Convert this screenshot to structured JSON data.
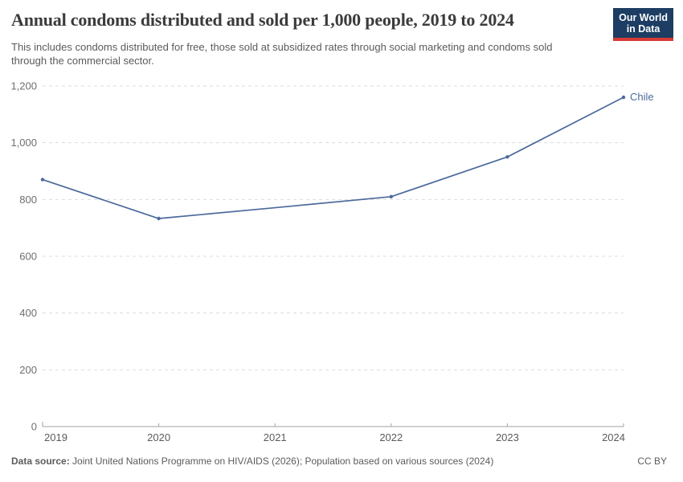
{
  "header": {
    "title": "Annual condoms distributed and sold per 1,000 people, 2019 to 2024",
    "subtitle": "This includes condoms distributed for free, those sold at subsidized rates through social marketing and condoms sold through the commercial sector.",
    "logo": {
      "line1": "Our World",
      "line2": "in Data",
      "bg_color": "#1d3d63",
      "bar_color": "#d73a35",
      "text_color": "#ffffff"
    }
  },
  "chart_data": {
    "type": "line",
    "title": "Annual condoms distributed and sold per 1,000 people, 2019 to 2024",
    "x": [
      2019,
      2020,
      2021,
      2022,
      2023,
      2024
    ],
    "xtick_labels": [
      "2019",
      "2020",
      "2021",
      "2022",
      "2023",
      "2024"
    ],
    "ylim": [
      0,
      1200
    ],
    "yticks": [
      0,
      200,
      400,
      600,
      800,
      1000,
      1200
    ],
    "ytick_labels": [
      "0",
      "200",
      "400",
      "600",
      "800",
      "1,000",
      "1,200"
    ],
    "grid": "horizontal-dashed",
    "legend": "inline-end-label",
    "series": [
      {
        "name": "Chile",
        "color": "#4c6a9c",
        "values": [
          870,
          733,
          771,
          810,
          950,
          1160
        ],
        "point_markers": [
          true,
          true,
          false,
          true,
          true,
          true
        ]
      }
    ]
  },
  "footer": {
    "source_label": "Data source:",
    "source_text": "Joint United Nations Programme on HIV/AIDS (2026); Population based on various sources (2024)",
    "license": "CC BY"
  },
  "style": {
    "grid_color": "#dcdcdc",
    "axis_color": "#a3a3a3",
    "ytick_color": "#6e6e6e",
    "xtick_color": "#5a5a5a"
  }
}
